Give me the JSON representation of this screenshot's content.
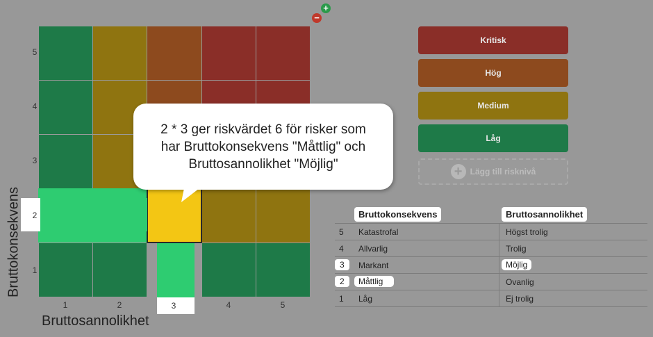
{
  "matrix": {
    "y_title": "Bruttokonsekvens",
    "x_title": "Bruttosannolikhet",
    "y_labels": [
      "5",
      "4",
      "3",
      "2",
      "1"
    ],
    "x_labels": [
      "1",
      "2",
      "3",
      "4",
      "5"
    ]
  },
  "zoom": {
    "in_symbol": "+",
    "out_symbol": "−"
  },
  "tooltip": {
    "line1": "2 * 3 ger riskvärdet 6 för risker som",
    "line2": "har Bruttokonsekvens \"Måttlig\" och",
    "line3": "Bruttosannolikhet \"Möjlig\""
  },
  "levels": {
    "critical": "Kritisk",
    "high": "Hög",
    "medium": "Medium",
    "low": "Låg",
    "add": "Lägg till risknivå"
  },
  "colors": {
    "critical": "#8a2e28",
    "high": "#8d4a1e",
    "medium": "#8f7410",
    "low": "#1e7a48",
    "highlight": "#2ecc71",
    "selected": "#f3c614"
  },
  "table": {
    "header_consequence": "Bruttokonsekvens",
    "header_probability": "Bruttosannolikhet",
    "rows": [
      {
        "num": "5",
        "consequence": "Katastrofal",
        "probability": "Högst trolig"
      },
      {
        "num": "4",
        "consequence": "Allvarlig",
        "probability": "Trolig"
      },
      {
        "num": "3",
        "consequence": "Markant",
        "probability": "Möjlig"
      },
      {
        "num": "2",
        "consequence": "Måttlig",
        "probability": "Ovanlig"
      },
      {
        "num": "1",
        "consequence": "Låg",
        "probability": "Ej trolig"
      }
    ]
  }
}
